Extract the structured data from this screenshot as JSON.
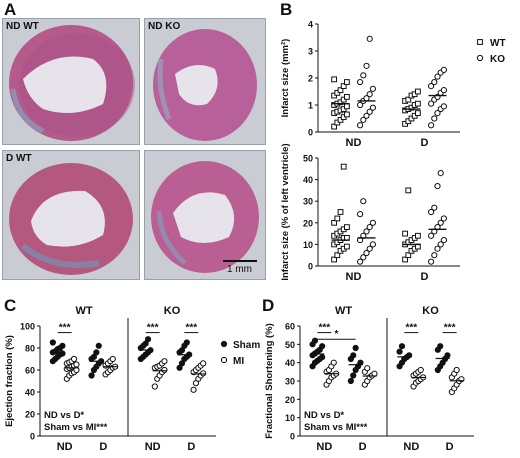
{
  "panels": {
    "a": {
      "letter": "A",
      "images": [
        {
          "label": "ND WT",
          "tissue_color": "#b65a8c"
        },
        {
          "label": "ND KO",
          "tissue_color": "#b8609a"
        },
        {
          "label": "D WT",
          "tissue_color": "#b4587f"
        },
        {
          "label": "D KO",
          "tissue_color": "#ba5f93"
        }
      ],
      "scale_bar_label": "1 mm"
    },
    "b": {
      "letter": "B"
    },
    "c": {
      "letter": "C"
    },
    "d": {
      "letter": "D"
    }
  },
  "chart_data": [
    {
      "id": "b1",
      "type": "scatter",
      "ylabel": "Infarct size (mm²)",
      "ylim": [
        0,
        4
      ],
      "yticks": [
        0,
        1,
        2,
        3,
        4
      ],
      "groups": [
        "ND",
        "D"
      ],
      "series": [
        {
          "name": "WT",
          "marker": "square",
          "values_by_group": [
            [
              0.2,
              0.35,
              0.45,
              0.55,
              0.65,
              0.7,
              0.75,
              0.8,
              0.85,
              0.95,
              1.0,
              1.05,
              1.1,
              1.2,
              1.3,
              1.35,
              1.45,
              1.55,
              1.7,
              1.85,
              1.95
            ],
            [
              0.3,
              0.4,
              0.5,
              0.6,
              0.7,
              0.8,
              0.85,
              0.9,
              1.0,
              1.05,
              1.15,
              1.2,
              1.35,
              1.4,
              1.5
            ]
          ]
        },
        {
          "name": "KO",
          "marker": "circle",
          "values_by_group": [
            [
              0.25,
              0.45,
              0.6,
              0.75,
              0.9,
              1.0,
              1.15,
              1.25,
              1.4,
              1.6,
              1.85,
              2.1,
              2.45,
              3.45
            ],
            [
              0.25,
              0.5,
              0.7,
              0.85,
              0.95,
              1.05,
              1.2,
              1.3,
              1.45,
              1.55,
              1.7,
              1.85,
              2.05,
              2.2,
              2.3
            ]
          ]
        }
      ],
      "means": [
        [
          1.05,
          1.15
        ],
        [
          0.85,
          1.35
        ]
      ],
      "legend": [
        "WT",
        "KO"
      ],
      "legend_position": "right"
    },
    {
      "id": "b2",
      "type": "scatter",
      "ylabel": "Infarct size (% of left ventricle)",
      "ylim": [
        0,
        50
      ],
      "yticks": [
        0,
        10,
        20,
        30,
        40,
        50
      ],
      "groups": [
        "ND",
        "D"
      ],
      "series": [
        {
          "name": "WT",
          "marker": "square",
          "values_by_group": [
            [
              3,
              5,
              7,
              8,
              9,
              10,
              11,
              12,
              13,
              13,
              14,
              15,
              16,
              17,
              18,
              20,
              22,
              25,
              46
            ],
            [
              3,
              5,
              7,
              8,
              9,
              10,
              11,
              12,
              13,
              14,
              15,
              35
            ]
          ]
        },
        {
          "name": "KO",
          "marker": "circle",
          "values_by_group": [
            [
              2,
              4,
              6,
              8,
              10,
              12,
              14,
              16,
              18,
              20,
              24,
              30
            ],
            [
              2,
              5,
              8,
              10,
              12,
              14,
              16,
              18,
              20,
              22,
              25,
              27,
              37,
              43
            ]
          ]
        }
      ],
      "means": [
        [
          12,
          13
        ],
        [
          10,
          17
        ]
      ]
    },
    {
      "id": "c",
      "type": "scatter",
      "ylabel": "Ejection fraction (%)",
      "ylim": [
        0,
        100
      ],
      "yticks": [
        0,
        20,
        40,
        60,
        80,
        100
      ],
      "subpanels": [
        "WT",
        "KO"
      ],
      "groups": [
        "ND",
        "D"
      ],
      "legend": [
        "Sham",
        "MI"
      ],
      "legend_position": "right",
      "data": {
        "WT": {
          "Sham": [
            [
              68,
              70,
              72,
              74,
              75,
              76,
              77,
              79,
              80,
              82,
              85
            ],
            [
              55,
              60,
              63,
              66,
              68,
              70,
              72,
              76,
              82
            ]
          ],
          "MI": [
            [
              52,
              55,
              57,
              58,
              60,
              61,
              62,
              63,
              64,
              65,
              66,
              67,
              68,
              70
            ],
            [
              56,
              58,
              60,
              62,
              63,
              64,
              66,
              68,
              70
            ]
          ]
        },
        "KO": {
          "Sham": [
            [
              70,
              72,
              74,
              76,
              78,
              80,
              82,
              84,
              88
            ],
            [
              62,
              66,
              70,
              72,
              74,
              76,
              78,
              82,
              85
            ]
          ],
          "MI": [
            [
              45,
              52,
              55,
              58,
              60,
              62,
              63,
              64,
              66,
              68
            ],
            [
              42,
              48,
              52,
              55,
              57,
              58,
              60,
              62,
              64,
              66
            ]
          ]
        }
      },
      "significance": [
        {
          "panel": "WT",
          "group": "ND",
          "text": "***"
        },
        {
          "panel": "KO",
          "group": "ND",
          "text": "***"
        },
        {
          "panel": "KO",
          "group": "D",
          "text": "***"
        }
      ],
      "annotations": [
        "ND vs D*",
        "Sham vs MI***"
      ]
    },
    {
      "id": "d",
      "type": "scatter",
      "ylabel": "Fractional Shortening (%)",
      "ylim": [
        0,
        60
      ],
      "yticks": [
        0,
        10,
        20,
        30,
        40,
        50,
        60
      ],
      "subpanels": [
        "WT",
        "KO"
      ],
      "groups": [
        "ND",
        "D"
      ],
      "data": {
        "WT": {
          "Sham": [
            [
              38,
              40,
              41,
              42,
              43,
              44,
              45,
              46,
              47,
              49,
              50,
              52
            ],
            [
              30,
              33,
              36,
              38,
              40,
              42,
              44,
              48
            ]
          ],
          "MI": [
            [
              28,
              30,
              32,
              33,
              34,
              35,
              36,
              38,
              40
            ],
            [
              28,
              30,
              32,
              33,
              34,
              35,
              37
            ]
          ]
        },
        "KO": {
          "Sham": [
            [
              38,
              40,
              42,
              43,
              44,
              46,
              49
            ],
            [
              36,
              38,
              40,
              42,
              44,
              47,
              49
            ]
          ],
          "MI": [
            [
              27,
              29,
              30,
              31,
              32,
              33,
              34,
              35,
              36
            ],
            [
              24,
              26,
              28,
              30,
              31,
              32,
              34,
              36
            ]
          ]
        }
      },
      "significance": [
        {
          "panel": "WT",
          "group": "ND",
          "text": "***"
        },
        {
          "panel": "WT",
          "group": "between",
          "text": "*"
        },
        {
          "panel": "KO",
          "group": "ND",
          "text": "***"
        },
        {
          "panel": "KO",
          "group": "D",
          "text": "***"
        }
      ],
      "annotations": [
        "ND vs D*",
        "Sham vs MI***"
      ]
    }
  ]
}
